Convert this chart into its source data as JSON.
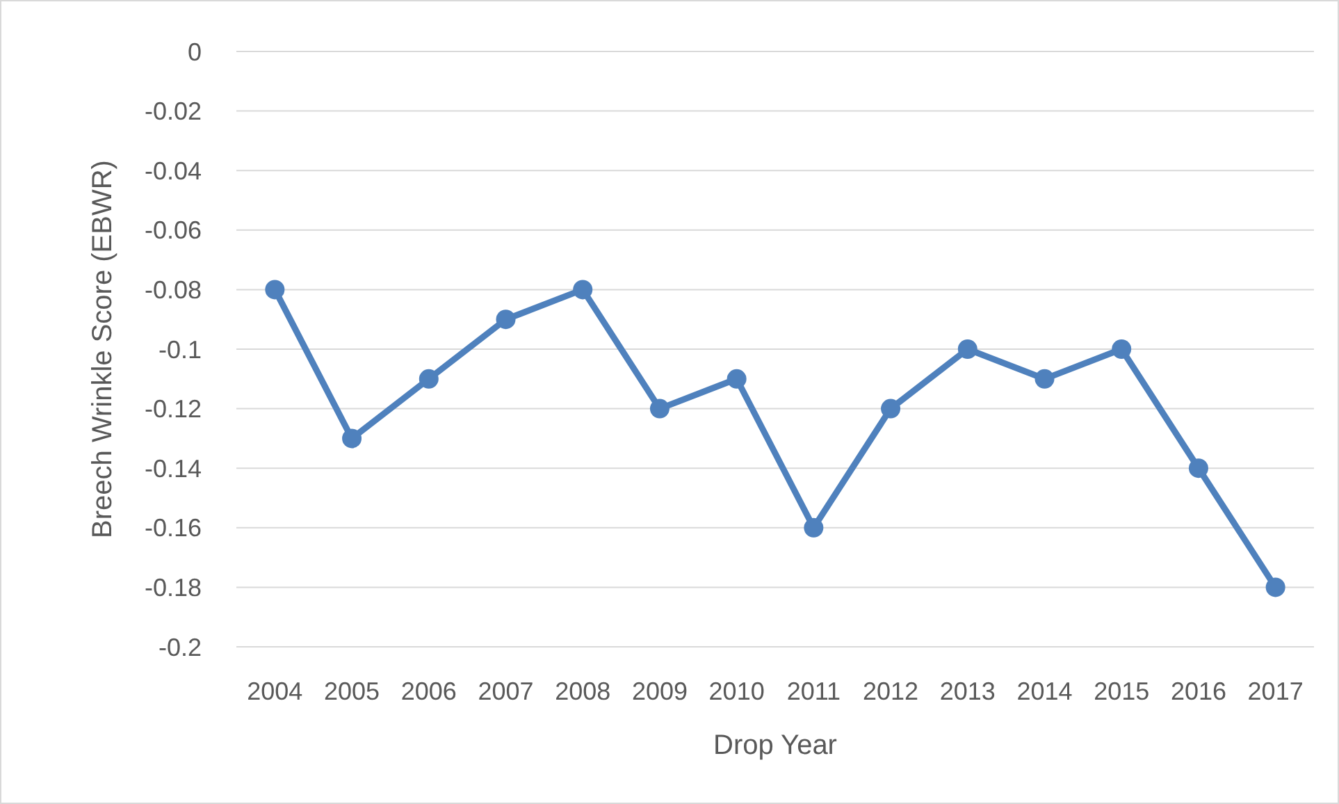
{
  "chart_data": {
    "type": "line",
    "xlabel": "Drop Year",
    "ylabel": "Breech Wrinkle Score (EBWR)",
    "categories": [
      "2004",
      "2005",
      "2006",
      "2007",
      "2008",
      "2009",
      "2010",
      "2011",
      "2012",
      "2013",
      "2014",
      "2015",
      "2016",
      "2017"
    ],
    "series": [
      {
        "color": "#4f81bd",
        "values": [
          -0.08,
          -0.13,
          -0.11,
          -0.09,
          -0.08,
          -0.12,
          -0.11,
          -0.16,
          -0.12,
          -0.1,
          -0.11,
          -0.1,
          -0.14,
          -0.18
        ]
      }
    ],
    "ylim": [
      -0.2,
      0
    ],
    "yticks": [
      0,
      -0.02,
      -0.04,
      -0.06,
      -0.08,
      -0.1,
      -0.12,
      -0.14,
      -0.16,
      -0.18,
      -0.2
    ],
    "grid": "y",
    "marker": "circle",
    "line_style": "solid"
  }
}
